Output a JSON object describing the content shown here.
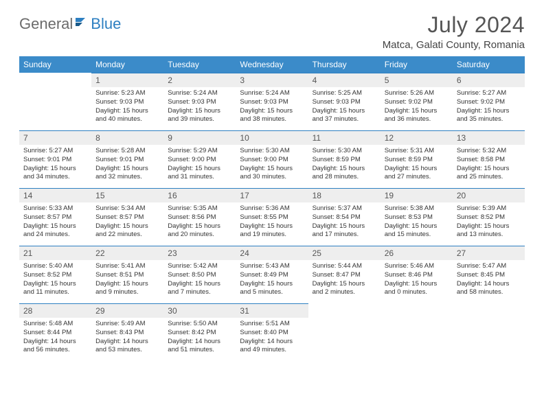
{
  "logo": {
    "general": "General",
    "blue": "Blue"
  },
  "title": "July 2024",
  "subtitle": "Matca, Galati County, Romania",
  "colors": {
    "header_bg": "#3b8bc9",
    "header_text": "#ffffff",
    "daynum_bg": "#eeeeee",
    "daynum_border": "#2d7fc1",
    "text": "#333333",
    "logo_gray": "#6b6b6b",
    "logo_blue": "#2d7fc1"
  },
  "weekdays": [
    "Sunday",
    "Monday",
    "Tuesday",
    "Wednesday",
    "Thursday",
    "Friday",
    "Saturday"
  ],
  "weeks": [
    [
      null,
      {
        "n": "1",
        "sr": "Sunrise: 5:23 AM",
        "ss": "Sunset: 9:03 PM",
        "dl": "Daylight: 15 hours and 40 minutes."
      },
      {
        "n": "2",
        "sr": "Sunrise: 5:24 AM",
        "ss": "Sunset: 9:03 PM",
        "dl": "Daylight: 15 hours and 39 minutes."
      },
      {
        "n": "3",
        "sr": "Sunrise: 5:24 AM",
        "ss": "Sunset: 9:03 PM",
        "dl": "Daylight: 15 hours and 38 minutes."
      },
      {
        "n": "4",
        "sr": "Sunrise: 5:25 AM",
        "ss": "Sunset: 9:03 PM",
        "dl": "Daylight: 15 hours and 37 minutes."
      },
      {
        "n": "5",
        "sr": "Sunrise: 5:26 AM",
        "ss": "Sunset: 9:02 PM",
        "dl": "Daylight: 15 hours and 36 minutes."
      },
      {
        "n": "6",
        "sr": "Sunrise: 5:27 AM",
        "ss": "Sunset: 9:02 PM",
        "dl": "Daylight: 15 hours and 35 minutes."
      }
    ],
    [
      {
        "n": "7",
        "sr": "Sunrise: 5:27 AM",
        "ss": "Sunset: 9:01 PM",
        "dl": "Daylight: 15 hours and 34 minutes."
      },
      {
        "n": "8",
        "sr": "Sunrise: 5:28 AM",
        "ss": "Sunset: 9:01 PM",
        "dl": "Daylight: 15 hours and 32 minutes."
      },
      {
        "n": "9",
        "sr": "Sunrise: 5:29 AM",
        "ss": "Sunset: 9:00 PM",
        "dl": "Daylight: 15 hours and 31 minutes."
      },
      {
        "n": "10",
        "sr": "Sunrise: 5:30 AM",
        "ss": "Sunset: 9:00 PM",
        "dl": "Daylight: 15 hours and 30 minutes."
      },
      {
        "n": "11",
        "sr": "Sunrise: 5:30 AM",
        "ss": "Sunset: 8:59 PM",
        "dl": "Daylight: 15 hours and 28 minutes."
      },
      {
        "n": "12",
        "sr": "Sunrise: 5:31 AM",
        "ss": "Sunset: 8:59 PM",
        "dl": "Daylight: 15 hours and 27 minutes."
      },
      {
        "n": "13",
        "sr": "Sunrise: 5:32 AM",
        "ss": "Sunset: 8:58 PM",
        "dl": "Daylight: 15 hours and 25 minutes."
      }
    ],
    [
      {
        "n": "14",
        "sr": "Sunrise: 5:33 AM",
        "ss": "Sunset: 8:57 PM",
        "dl": "Daylight: 15 hours and 24 minutes."
      },
      {
        "n": "15",
        "sr": "Sunrise: 5:34 AM",
        "ss": "Sunset: 8:57 PM",
        "dl": "Daylight: 15 hours and 22 minutes."
      },
      {
        "n": "16",
        "sr": "Sunrise: 5:35 AM",
        "ss": "Sunset: 8:56 PM",
        "dl": "Daylight: 15 hours and 20 minutes."
      },
      {
        "n": "17",
        "sr": "Sunrise: 5:36 AM",
        "ss": "Sunset: 8:55 PM",
        "dl": "Daylight: 15 hours and 19 minutes."
      },
      {
        "n": "18",
        "sr": "Sunrise: 5:37 AM",
        "ss": "Sunset: 8:54 PM",
        "dl": "Daylight: 15 hours and 17 minutes."
      },
      {
        "n": "19",
        "sr": "Sunrise: 5:38 AM",
        "ss": "Sunset: 8:53 PM",
        "dl": "Daylight: 15 hours and 15 minutes."
      },
      {
        "n": "20",
        "sr": "Sunrise: 5:39 AM",
        "ss": "Sunset: 8:52 PM",
        "dl": "Daylight: 15 hours and 13 minutes."
      }
    ],
    [
      {
        "n": "21",
        "sr": "Sunrise: 5:40 AM",
        "ss": "Sunset: 8:52 PM",
        "dl": "Daylight: 15 hours and 11 minutes."
      },
      {
        "n": "22",
        "sr": "Sunrise: 5:41 AM",
        "ss": "Sunset: 8:51 PM",
        "dl": "Daylight: 15 hours and 9 minutes."
      },
      {
        "n": "23",
        "sr": "Sunrise: 5:42 AM",
        "ss": "Sunset: 8:50 PM",
        "dl": "Daylight: 15 hours and 7 minutes."
      },
      {
        "n": "24",
        "sr": "Sunrise: 5:43 AM",
        "ss": "Sunset: 8:49 PM",
        "dl": "Daylight: 15 hours and 5 minutes."
      },
      {
        "n": "25",
        "sr": "Sunrise: 5:44 AM",
        "ss": "Sunset: 8:47 PM",
        "dl": "Daylight: 15 hours and 2 minutes."
      },
      {
        "n": "26",
        "sr": "Sunrise: 5:46 AM",
        "ss": "Sunset: 8:46 PM",
        "dl": "Daylight: 15 hours and 0 minutes."
      },
      {
        "n": "27",
        "sr": "Sunrise: 5:47 AM",
        "ss": "Sunset: 8:45 PM",
        "dl": "Daylight: 14 hours and 58 minutes."
      }
    ],
    [
      {
        "n": "28",
        "sr": "Sunrise: 5:48 AM",
        "ss": "Sunset: 8:44 PM",
        "dl": "Daylight: 14 hours and 56 minutes."
      },
      {
        "n": "29",
        "sr": "Sunrise: 5:49 AM",
        "ss": "Sunset: 8:43 PM",
        "dl": "Daylight: 14 hours and 53 minutes."
      },
      {
        "n": "30",
        "sr": "Sunrise: 5:50 AM",
        "ss": "Sunset: 8:42 PM",
        "dl": "Daylight: 14 hours and 51 minutes."
      },
      {
        "n": "31",
        "sr": "Sunrise: 5:51 AM",
        "ss": "Sunset: 8:40 PM",
        "dl": "Daylight: 14 hours and 49 minutes."
      },
      null,
      null,
      null
    ]
  ]
}
